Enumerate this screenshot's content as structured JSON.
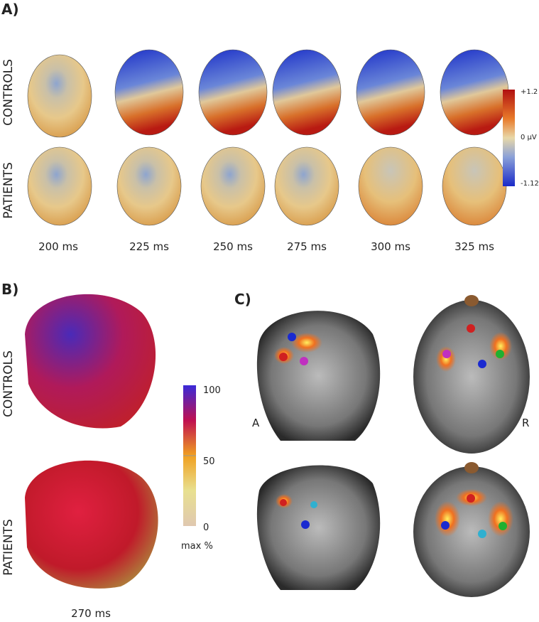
{
  "panel_a": {
    "label": "A)",
    "row_labels": [
      "CONTROLS",
      "PATIENTS"
    ],
    "times": [
      "200 ms",
      "225 ms",
      "250 ms",
      "275 ms",
      "300 ms",
      "325 ms"
    ],
    "colorbar": [
      "+1.2",
      "0 µV",
      "-1.12"
    ]
  },
  "panel_b": {
    "label": "B)",
    "row_labels": [
      "CONTROLS",
      "PATIENTS"
    ],
    "colorbar": [
      "100",
      "50",
      "0"
    ],
    "colorbar_title": "max %",
    "time": "270 ms"
  },
  "panel_c": {
    "label": "C)",
    "orientation": [
      "A",
      "R"
    ]
  }
}
